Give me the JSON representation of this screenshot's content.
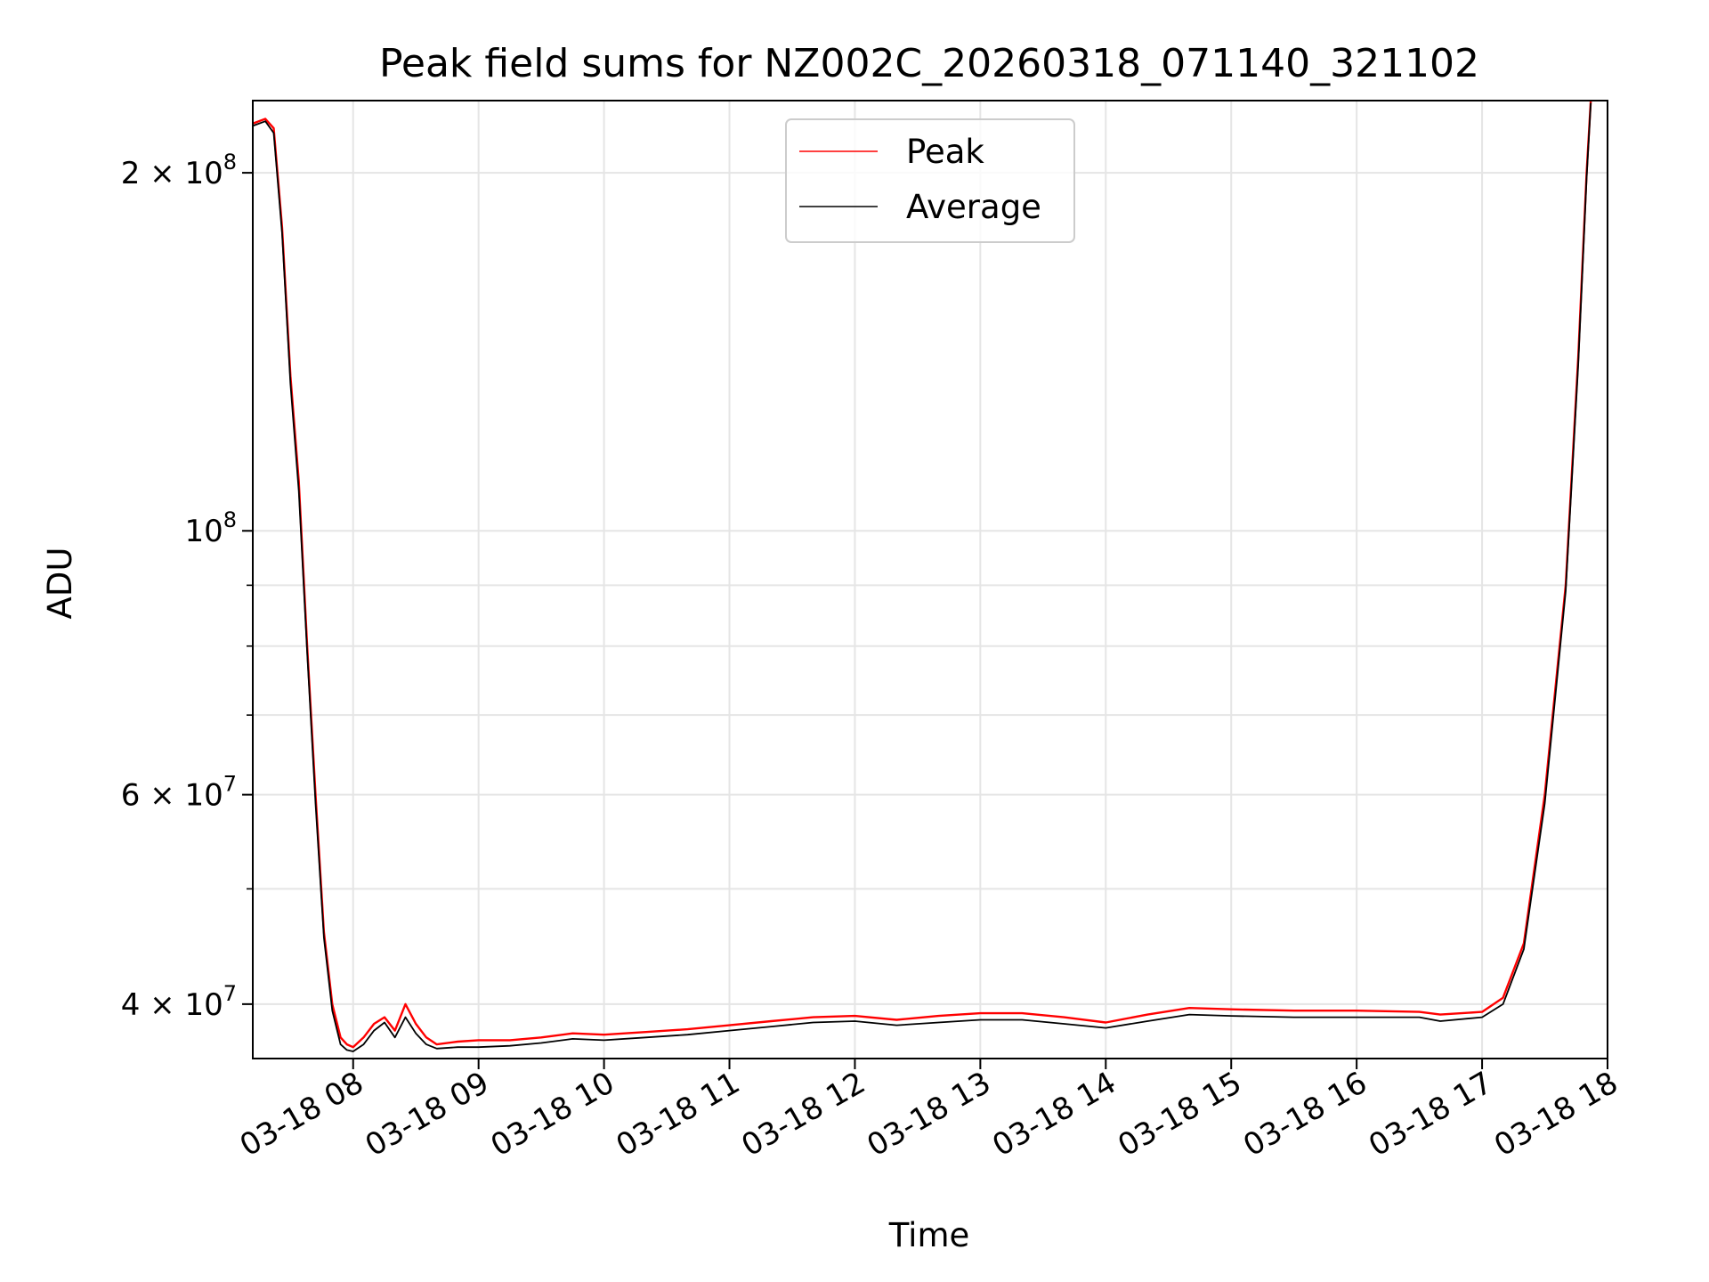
{
  "chart_data": {
    "type": "line",
    "title": "Peak field sums for NZ002C_20260318_071140_321102",
    "xlabel": "Time",
    "ylabel": "ADU",
    "yscale": "log",
    "xlim": [
      "03-18 07:12",
      "03-18 18:00"
    ],
    "ylim": [
      36000000,
      230000000
    ],
    "grid": true,
    "legend_position": "upper center",
    "x_ticks": [
      "03-18 08",
      "03-18 09",
      "03-18 10",
      "03-18 11",
      "03-18 12",
      "03-18 13",
      "03-18 14",
      "03-18 15",
      "03-18 16",
      "03-18 17",
      "03-18 18"
    ],
    "y_ticks": [
      {
        "value": 40000000,
        "label_base": "4 × 10",
        "label_exp": "7"
      },
      {
        "value": 60000000,
        "label_base": "6 × 10",
        "label_exp": "7"
      },
      {
        "value": 100000000,
        "label_base": "10",
        "label_exp": "8"
      },
      {
        "value": 200000000,
        "label_base": "2 × 10",
        "label_exp": "8"
      }
    ],
    "y_minor_ticks": [
      50000000,
      70000000,
      80000000,
      90000000
    ],
    "series": [
      {
        "name": "Peak",
        "color": "#ff0000",
        "x": [
          "03-18 07:12",
          "03-18 07:18",
          "03-18 07:22",
          "03-18 07:26",
          "03-18 07:30",
          "03-18 07:34",
          "03-18 07:38",
          "03-18 07:42",
          "03-18 07:46",
          "03-18 07:50",
          "03-18 07:54",
          "03-18 07:57",
          "03-18 08:00",
          "03-18 08:05",
          "03-18 08:10",
          "03-18 08:15",
          "03-18 08:20",
          "03-18 08:25",
          "03-18 08:30",
          "03-18 08:35",
          "03-18 08:40",
          "03-18 08:50",
          "03-18 09:00",
          "03-18 09:15",
          "03-18 09:30",
          "03-18 09:45",
          "03-18 10:00",
          "03-18 10:20",
          "03-18 10:40",
          "03-18 11:00",
          "03-18 11:20",
          "03-18 11:40",
          "03-18 12:00",
          "03-18 12:20",
          "03-18 12:40",
          "03-18 13:00",
          "03-18 13:20",
          "03-18 13:40",
          "03-18 14:00",
          "03-18 14:20",
          "03-18 14:40",
          "03-18 15:00",
          "03-18 15:30",
          "03-18 16:00",
          "03-18 16:30",
          "03-18 16:40",
          "03-18 17:00",
          "03-18 17:10",
          "03-18 17:20",
          "03-18 17:30",
          "03-18 17:40",
          "03-18 17:46",
          "03-18 17:50",
          "03-18 17:52"
        ],
        "values": [
          220000000,
          222000000,
          218000000,
          180000000,
          135000000,
          110000000,
          80000000,
          60000000,
          46000000,
          40000000,
          37500000,
          37000000,
          36800000,
          37500000,
          38500000,
          39000000,
          38000000,
          40000000,
          38500000,
          37500000,
          37000000,
          37200000,
          37300000,
          37300000,
          37500000,
          37800000,
          37700000,
          37900000,
          38100000,
          38400000,
          38700000,
          39000000,
          39100000,
          38800000,
          39100000,
          39300000,
          39300000,
          39000000,
          38600000,
          39200000,
          39700000,
          39600000,
          39500000,
          39500000,
          39400000,
          39200000,
          39400000,
          40500000,
          45000000,
          60000000,
          90000000,
          140000000,
          200000000,
          230000000
        ]
      },
      {
        "name": "Average",
        "color": "#000000",
        "x": [
          "03-18 07:12",
          "03-18 07:18",
          "03-18 07:22",
          "03-18 07:26",
          "03-18 07:30",
          "03-18 07:34",
          "03-18 07:38",
          "03-18 07:42",
          "03-18 07:46",
          "03-18 07:50",
          "03-18 07:54",
          "03-18 07:57",
          "03-18 08:00",
          "03-18 08:05",
          "03-18 08:10",
          "03-18 08:15",
          "03-18 08:20",
          "03-18 08:25",
          "03-18 08:30",
          "03-18 08:35",
          "03-18 08:40",
          "03-18 08:50",
          "03-18 09:00",
          "03-18 09:15",
          "03-18 09:30",
          "03-18 09:45",
          "03-18 10:00",
          "03-18 10:20",
          "03-18 10:40",
          "03-18 11:00",
          "03-18 11:20",
          "03-18 11:40",
          "03-18 12:00",
          "03-18 12:20",
          "03-18 12:40",
          "03-18 13:00",
          "03-18 13:20",
          "03-18 13:40",
          "03-18 14:00",
          "03-18 14:20",
          "03-18 14:40",
          "03-18 15:00",
          "03-18 15:30",
          "03-18 16:00",
          "03-18 16:30",
          "03-18 16:40",
          "03-18 17:00",
          "03-18 17:10",
          "03-18 17:20",
          "03-18 17:30",
          "03-18 17:40",
          "03-18 17:46",
          "03-18 17:50",
          "03-18 17:52"
        ],
        "values": [
          219000000,
          221000000,
          216000000,
          178000000,
          133000000,
          108000000,
          79000000,
          59000000,
          45500000,
          39500000,
          37000000,
          36600000,
          36500000,
          37000000,
          38000000,
          38600000,
          37500000,
          39000000,
          37800000,
          37000000,
          36700000,
          36800000,
          36800000,
          36900000,
          37100000,
          37400000,
          37300000,
          37500000,
          37700000,
          38000000,
          38300000,
          38600000,
          38700000,
          38400000,
          38600000,
          38800000,
          38800000,
          38500000,
          38200000,
          38700000,
          39200000,
          39100000,
          39000000,
          39000000,
          39000000,
          38700000,
          39000000,
          40000000,
          44500000,
          59000000,
          89000000,
          138000000,
          198000000,
          229000000
        ]
      }
    ]
  }
}
